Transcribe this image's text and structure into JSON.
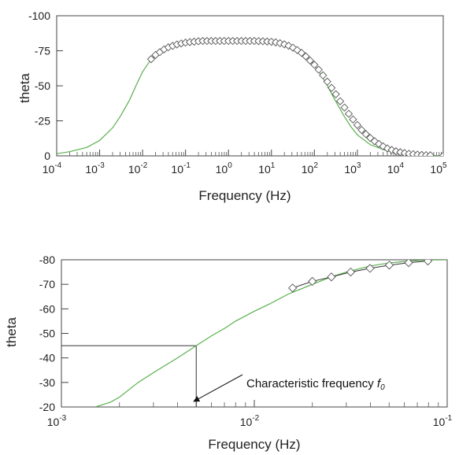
{
  "chart_data": [
    {
      "type": "line",
      "x_scale": "log",
      "y_axis_inverted": true,
      "xlabel": "Frequency (Hz)",
      "ylabel": "theta",
      "xlim": [
        0.0001,
        100000
      ],
      "ylim": [
        0,
        -100
      ],
      "x_ticks": [
        {
          "base": "10",
          "exp": "-4",
          "value": 0.0001
        },
        {
          "base": "10",
          "exp": "-3",
          "value": 0.001
        },
        {
          "base": "10",
          "exp": "-2",
          "value": 0.01
        },
        {
          "base": "10",
          "exp": "-1",
          "value": 0.1
        },
        {
          "base": "10",
          "exp": "0",
          "value": 1
        },
        {
          "base": "10",
          "exp": "1",
          "value": 10
        },
        {
          "base": "10",
          "exp": "2",
          "value": 100
        },
        {
          "base": "10",
          "exp": "3",
          "value": 1000
        },
        {
          "base": "10",
          "exp": "4",
          "value": 10000
        },
        {
          "base": "10",
          "exp": "5",
          "value": 100000
        }
      ],
      "y_ticks": [
        "0",
        "-25",
        "-50",
        "-75",
        "-100"
      ],
      "y_tick_values": [
        0,
        -25,
        -50,
        -75,
        -100
      ],
      "grid": false,
      "series": [
        {
          "style": "line",
          "color": "#5ab04e",
          "x": [
            0.0001,
            0.0002,
            0.0005,
            0.001,
            0.002,
            0.003,
            0.005,
            0.007,
            0.01,
            0.015,
            0.02,
            0.03,
            0.05,
            0.1,
            0.2,
            0.5,
            1,
            2,
            5,
            10,
            20,
            30,
            50,
            70,
            100,
            150,
            200,
            300,
            500,
            700,
            1000,
            2000,
            5000,
            10000,
            30000,
            100000
          ],
          "y": [
            -1.5,
            -3,
            -6,
            -11,
            -20,
            -28,
            -40,
            -50,
            -60,
            -68,
            -72,
            -76,
            -79,
            -81,
            -82,
            -82,
            -82,
            -82,
            -82,
            -81.5,
            -80,
            -78,
            -74,
            -70,
            -65,
            -57,
            -50,
            -40,
            -28,
            -21,
            -15,
            -8,
            -3.5,
            -2,
            -0.5,
            -0.1
          ]
        },
        {
          "style": "markers",
          "marker": "diamond",
          "color": "#555555",
          "x": [
            0.0158,
            0.02,
            0.0251,
            0.0316,
            0.0398,
            0.0501,
            0.0631,
            0.0794,
            0.1,
            0.1259,
            0.1585,
            0.1995,
            0.2512,
            0.3162,
            0.3981,
            0.5012,
            0.631,
            0.7943,
            1,
            1.2589,
            1.5849,
            1.9953,
            2.5119,
            3.1623,
            3.9811,
            5.0119,
            6.3096,
            7.9433,
            10,
            12.589,
            15.849,
            19.953,
            25.119,
            31.623,
            39.811,
            50.119,
            63.096,
            79.433,
            100,
            125.89,
            158.49,
            199.53,
            251.19,
            316.23,
            398.11,
            501.19,
            630.96,
            794.33,
            1000,
            1258.9,
            1584.9,
            1995.3,
            2511.9,
            3162.3,
            3981.1,
            5011.9,
            6309.6,
            7943.3,
            10000,
            12589,
            15849,
            19953,
            25119,
            31623,
            39811,
            50119,
            100000
          ],
          "y": [
            -69,
            -72,
            -74,
            -76,
            -77.5,
            -78.5,
            -79.5,
            -80.2,
            -80.8,
            -81.2,
            -81.5,
            -81.8,
            -82,
            -82,
            -82,
            -82,
            -82,
            -82,
            -82,
            -82,
            -82,
            -82,
            -82,
            -82,
            -82,
            -81.9,
            -81.8,
            -81.6,
            -81.4,
            -81,
            -80.4,
            -79.6,
            -78.6,
            -77.2,
            -75.5,
            -73.5,
            -71,
            -68,
            -65,
            -61.5,
            -57.5,
            -53,
            -48.5,
            -44,
            -39,
            -34.5,
            -30,
            -26,
            -22,
            -18.5,
            -15.5,
            -12.8,
            -10.5,
            -8.5,
            -6.8,
            -5.3,
            -4.2,
            -3.3,
            -2.6,
            -2,
            -1.5,
            -1.2,
            -0.9,
            -0.7,
            -0.5,
            -0.4,
            -0.1
          ]
        }
      ]
    },
    {
      "type": "line",
      "x_scale": "log",
      "y_axis_inverted": true,
      "xlabel": "Frequency (Hz)",
      "ylabel": "theta",
      "xlim": [
        0.001,
        0.1
      ],
      "ylim": [
        -20,
        -80
      ],
      "x_ticks": [
        {
          "base": "10",
          "exp": "-3",
          "value": 0.001
        },
        {
          "base": "10",
          "exp": "-2",
          "value": 0.01
        },
        {
          "base": "10",
          "exp": "-1",
          "value": 0.1
        }
      ],
      "y_ticks": [
        "-20",
        "-30",
        "-40",
        "-50",
        "-60",
        "-70",
        "-80"
      ],
      "y_tick_values": [
        -20,
        -30,
        -40,
        -50,
        -60,
        -70,
        -80
      ],
      "grid": false,
      "series": [
        {
          "style": "line",
          "color": "#5ab04e",
          "x": [
            0.0015,
            0.0018,
            0.002,
            0.0025,
            0.003,
            0.004,
            0.005,
            0.006,
            0.007,
            0.008,
            0.01,
            0.012,
            0.015,
            0.02,
            0.025,
            0.03,
            0.04,
            0.05,
            0.06,
            0.07,
            0.08,
            0.1
          ],
          "y": [
            -20,
            -22,
            -24,
            -30,
            -34,
            -40,
            -45,
            -49,
            -52,
            -55,
            -59,
            -62,
            -66,
            -70,
            -73,
            -75,
            -77.5,
            -78.7,
            -79.3,
            -79.7,
            -79.9,
            -80
          ]
        },
        {
          "style": "markers+line",
          "marker": "diamond",
          "color": "#555555",
          "x": [
            0.0158,
            0.02,
            0.0251,
            0.0316,
            0.0398,
            0.0501,
            0.0631,
            0.0794
          ],
          "y": [
            -68.5,
            -71.2,
            -73,
            -75,
            -76.5,
            -77.8,
            -78.8,
            -79.5
          ]
        }
      ],
      "guides": {
        "x": 0.005,
        "y": -45
      },
      "annotation": {
        "text": "Characteristic frequency ",
        "symbol": "f",
        "subscript": "0"
      }
    }
  ]
}
